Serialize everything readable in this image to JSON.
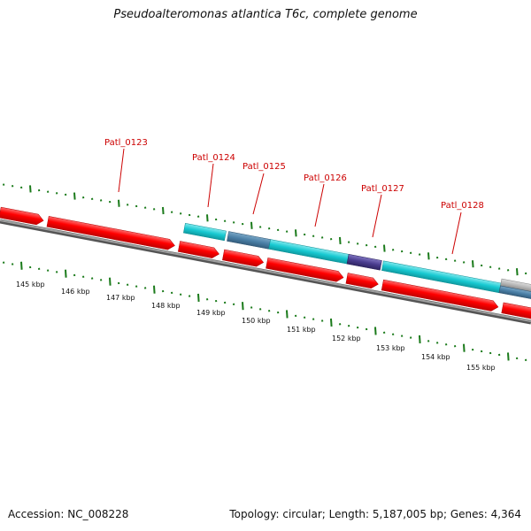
{
  "title": "Pseudoalteromonas atlantica T6c, complete genome",
  "footer": {
    "accession": "Accession: NC_008228",
    "summary": "Topology: circular; Length: 5,187,005 bp; Genes: 4,364"
  },
  "colors": {
    "cds_red": "#ff0000",
    "feature_cyan": "#17c9d1",
    "feature_steel": "#4a7fa6",
    "feature_navy": "#4a3d8f",
    "feature_gray": "#b9b9b9",
    "backbone": "#7a7a7a",
    "ticks_green": "#1a7a1a",
    "label_red": "#cc0000"
  },
  "gene_labels": [
    "Patl_0123",
    "Patl_0124",
    "Patl_0125",
    "Patl_0126",
    "Patl_0127",
    "Patl_0128"
  ],
  "scale_labels": [
    "145 kbp",
    "146 kbp",
    "147 kbp",
    "148 kbp",
    "149 kbp",
    "150 kbp",
    "151 kbp",
    "152 kbp",
    "153 kbp",
    "154 kbp",
    "155 kbp"
  ]
}
